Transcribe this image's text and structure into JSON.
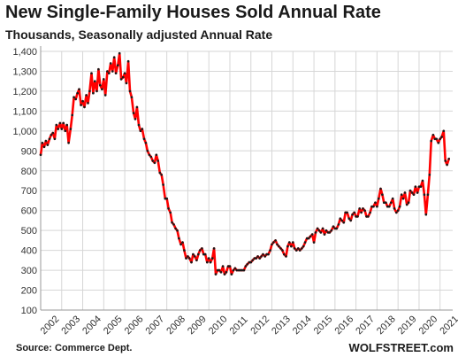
{
  "chart_data": {
    "type": "line",
    "title": "New Single-Family Houses Sold Annual Rate",
    "subtitle": "Thousands, Seasonally adjusted Annual Rate",
    "source": "Source: Commerce Dept.",
    "watermark": "WOLFSTREET.com",
    "ylim": [
      100,
      1400
    ],
    "y_ticks": [
      "100",
      "200",
      "300",
      "400",
      "500",
      "600",
      "700",
      "800",
      "900",
      "1,000",
      "1,100",
      "1,200",
      "1,300",
      "1,400"
    ],
    "x_ticks": [
      "2002",
      "2003",
      "2004",
      "2005",
      "2006",
      "2007",
      "2008",
      "2009",
      "2010",
      "2011",
      "2012",
      "2013",
      "2014",
      "2015",
      "2016",
      "2017",
      "2018",
      "2019",
      "2020",
      "2021"
    ],
    "grid": true,
    "line_color": "#ff0000",
    "marker_color": "#1a1a1a",
    "series": [
      {
        "x": [
          2002.0,
          2002.08,
          2002.17,
          2002.25,
          2002.33,
          2002.42,
          2002.5,
          2002.58,
          2002.67,
          2002.75,
          2002.83,
          2002.92,
          2003.0,
          2003.08,
          2003.17,
          2003.25,
          2003.33,
          2003.42,
          2003.5,
          2003.58,
          2003.67,
          2003.75,
          2003.83,
          2003.92,
          2004.0,
          2004.08,
          2004.17,
          2004.25,
          2004.33,
          2004.42,
          2004.5,
          2004.58,
          2004.67,
          2004.75,
          2004.83,
          2004.92,
          2005.0,
          2005.08,
          2005.17,
          2005.25,
          2005.33,
          2005.42,
          2005.5,
          2005.58,
          2005.67,
          2005.75,
          2005.83,
          2005.92,
          2006.0,
          2006.08,
          2006.17,
          2006.25,
          2006.33,
          2006.42,
          2006.5,
          2006.58,
          2006.67,
          2006.75,
          2006.83,
          2006.92,
          2007.0,
          2007.08,
          2007.17,
          2007.25,
          2007.33,
          2007.42,
          2007.5,
          2007.58,
          2007.67,
          2007.75,
          2007.83,
          2007.92,
          2008.0,
          2008.08,
          2008.17,
          2008.25,
          2008.33,
          2008.42,
          2008.5,
          2008.58,
          2008.67,
          2008.75,
          2008.83,
          2008.92,
          2009.0,
          2009.08,
          2009.17,
          2009.25,
          2009.33,
          2009.42,
          2009.5,
          2009.58,
          2009.67,
          2009.75,
          2009.83,
          2009.92,
          2010.0,
          2010.08,
          2010.17,
          2010.25,
          2010.33,
          2010.42,
          2010.5,
          2010.58,
          2010.67,
          2010.75,
          2010.83,
          2010.92,
          2011.0,
          2011.08,
          2011.17,
          2011.25,
          2011.33,
          2011.42,
          2011.5,
          2011.58,
          2011.67,
          2011.75,
          2011.83,
          2011.92,
          2012.0,
          2012.08,
          2012.17,
          2012.25,
          2012.33,
          2012.42,
          2012.5,
          2012.58,
          2012.67,
          2012.75,
          2012.83,
          2012.92,
          2013.0,
          2013.08,
          2013.17,
          2013.25,
          2013.33,
          2013.42,
          2013.5,
          2013.58,
          2013.67,
          2013.75,
          2013.83,
          2013.92,
          2014.0,
          2014.08,
          2014.17,
          2014.25,
          2014.33,
          2014.42,
          2014.5,
          2014.58,
          2014.67,
          2014.75,
          2014.83,
          2014.92,
          2015.0,
          2015.08,
          2015.17,
          2015.25,
          2015.33,
          2015.42,
          2015.5,
          2015.58,
          2015.67,
          2015.75,
          2015.83,
          2015.92,
          2016.0,
          2016.08,
          2016.17,
          2016.25,
          2016.33,
          2016.42,
          2016.5,
          2016.58,
          2016.67,
          2016.75,
          2016.83,
          2016.92,
          2017.0,
          2017.08,
          2017.17,
          2017.25,
          2017.33,
          2017.42,
          2017.5,
          2017.58,
          2017.67,
          2017.75,
          2017.83,
          2017.92,
          2018.0,
          2018.08,
          2018.17,
          2018.25,
          2018.33,
          2018.42,
          2018.5,
          2018.58,
          2018.67,
          2018.75,
          2018.83,
          2018.92,
          2019.0,
          2019.08,
          2019.17,
          2019.25,
          2019.33,
          2019.42,
          2019.5,
          2019.58,
          2019.67,
          2019.75,
          2019.83,
          2019.92,
          2020.0,
          2020.08,
          2020.17,
          2020.25,
          2020.33,
          2020.42,
          2020.5,
          2020.58,
          2020.67,
          2020.75,
          2020.83,
          2020.92,
          2021.0,
          2021.08,
          2021.17,
          2021.25,
          2021.33,
          2021.42
        ],
        "y": [
          880,
          940,
          920,
          950,
          930,
          960,
          980,
          990,
          960,
          1030,
          1010,
          1040,
          1010,
          1040,
          1000,
          1030,
          940,
          1010,
          1080,
          1170,
          1160,
          1190,
          1210,
          1130,
          1150,
          1120,
          1180,
          1140,
          1200,
          1290,
          1190,
          1250,
          1200,
          1310,
          1230,
          1210,
          1260,
          1180,
          1300,
          1290,
          1340,
          1300,
          1370,
          1290,
          1330,
          1390,
          1260,
          1270,
          1290,
          1240,
          1350,
          1200,
          1170,
          1090,
          1060,
          1120,
          1030,
          1000,
          1010,
          960,
          940,
          900,
          880,
          870,
          850,
          840,
          880,
          850,
          790,
          780,
          730,
          660,
          660,
          610,
          590,
          540,
          530,
          510,
          500,
          460,
          430,
          440,
          400,
          360,
          370,
          360,
          340,
          380,
          370,
          350,
          380,
          400,
          410,
          380,
          380,
          340,
          360,
          340,
          360,
          410,
          280,
          300,
          300,
          290,
          320,
          280,
          290,
          320,
          320,
          280,
          300,
          310,
          300,
          300,
          300,
          300,
          300,
          320,
          330,
          340,
          340,
          350,
          360,
          360,
          370,
          360,
          370,
          380,
          370,
          380,
          380,
          400,
          430,
          440,
          450,
          430,
          420,
          410,
          400,
          380,
          370,
          420,
          440,
          420,
          440,
          410,
          400,
          410,
          400,
          410,
          420,
          440,
          460,
          460,
          470,
          480,
          440,
          490,
          510,
          500,
          490,
          510,
          480,
          500,
          490,
          490,
          500,
          520,
          510,
          510,
          530,
          560,
          550,
          540,
          590,
          590,
          560,
          550,
          580,
          590,
          570,
          570,
          610,
          590,
          610,
          600,
          570,
          570,
          590,
          620,
          620,
          640,
          620,
          660,
          710,
          680,
          640,
          640,
          620,
          620,
          640,
          660,
          610,
          590,
          600,
          620,
          680,
          660,
          690,
          630,
          640,
          700,
          690,
          680,
          720,
          690,
          720,
          720,
          750,
          680,
          580,
          680,
          780,
          950,
          980,
          960,
          960,
          940,
          960,
          970,
          1000,
          850,
          830,
          860
        ]
      }
    ]
  }
}
